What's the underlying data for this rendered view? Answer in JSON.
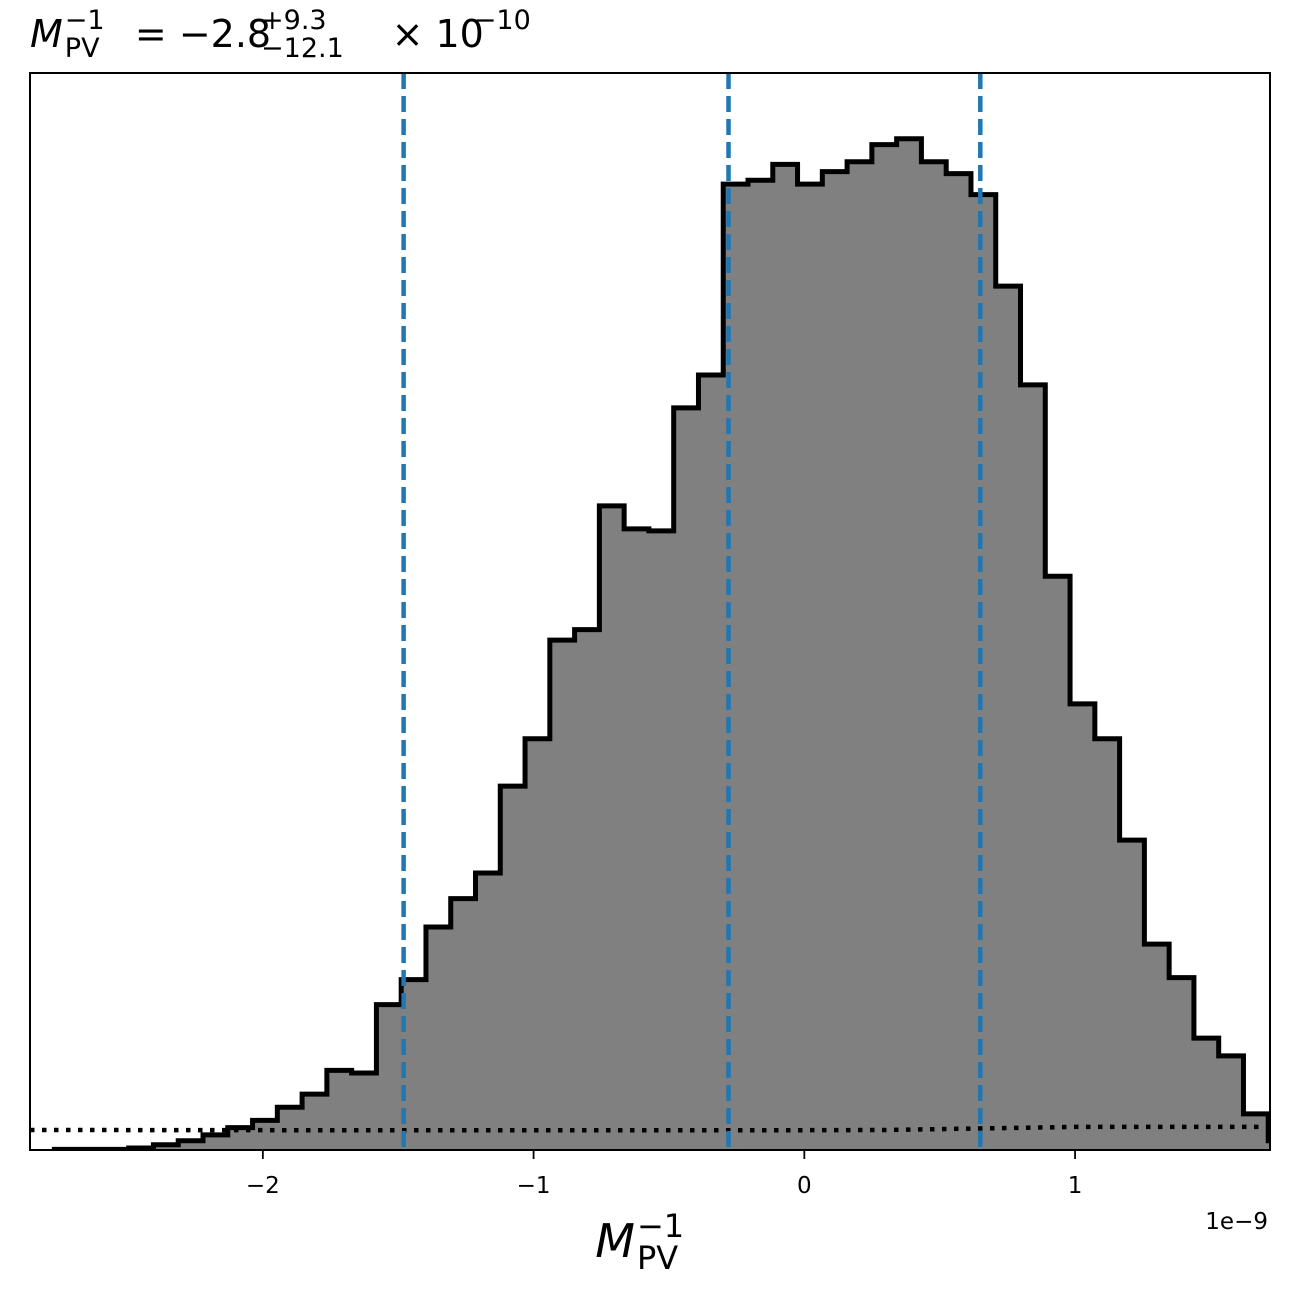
{
  "chart_data": {
    "type": "bar",
    "histtype": "step-filled",
    "title": {
      "parts": [
        {
          "text": "M",
          "style": "italic"
        },
        {
          "text": "−1",
          "style": "sup"
        },
        {
          "text": "PV",
          "style": "sub"
        },
        {
          "text": " = −2.8",
          "style": "normal"
        },
        {
          "text": "+9.3",
          "style": "sup"
        },
        {
          "text": "−12.1",
          "style": "sub"
        },
        {
          "text": " × 10",
          "style": "normal"
        },
        {
          "text": "−10",
          "style": "sup"
        }
      ]
    },
    "xlabel": {
      "parts": [
        {
          "text": "M",
          "style": "italic"
        },
        {
          "text": "−1",
          "style": "sup"
        },
        {
          "text": "PV",
          "style": "sub"
        }
      ]
    },
    "x_offset_label": "1e−9",
    "xlim": [
      -2.86,
      1.72
    ],
    "ylim": [
      0,
      1.05
    ],
    "xticks": [
      {
        "value": -2,
        "label": "−2"
      },
      {
        "value": -1,
        "label": "−1"
      },
      {
        "value": 0,
        "label": "0"
      },
      {
        "value": 1,
        "label": "1"
      }
    ],
    "yticks_visible": false,
    "grid": false,
    "bin_start": -2.77,
    "bin_width": 0.0915,
    "values": [
      0.001,
      0.001,
      0.001,
      0.003,
      0.008,
      0.014,
      0.023,
      0.034,
      0.045,
      0.065,
      0.085,
      0.121,
      0.117,
      0.221,
      0.259,
      0.339,
      0.382,
      0.421,
      0.553,
      0.625,
      0.775,
      0.791,
      0.979,
      0.944,
      0.941,
      1.128,
      1.178,
      1.468,
      1.474,
      1.498,
      1.468,
      1.487,
      1.502,
      1.528,
      1.537,
      1.502,
      1.484,
      1.452,
      1.313,
      1.163,
      0.872,
      0.678,
      0.625,
      0.471,
      0.313,
      0.262,
      0.17,
      0.143,
      0.055,
      0.014,
      0.011,
      0.003,
      0.002,
      0.001
    ],
    "series_values_note": "",
    "vlines": [
      {
        "x": -1.48,
        "style": "dashed",
        "color": "#1f77b4"
      },
      {
        "x": -0.28,
        "style": "dashed",
        "color": "#1f77b4"
      },
      {
        "x": 0.65,
        "style": "dashed",
        "color": "#1f77b4"
      }
    ],
    "reference_curve": {
      "style": "dotted",
      "color": "#000000",
      "points": [
        [
          -2.86,
          0.0195
        ],
        [
          -1.5,
          0.0192
        ],
        [
          0.0,
          0.0193
        ],
        [
          0.3,
          0.0195
        ],
        [
          1.0,
          0.0225
        ],
        [
          1.72,
          0.0225
        ]
      ]
    },
    "colors": {
      "fill": "#808080",
      "outline": "#000000",
      "vline": "#1f77b4"
    }
  }
}
